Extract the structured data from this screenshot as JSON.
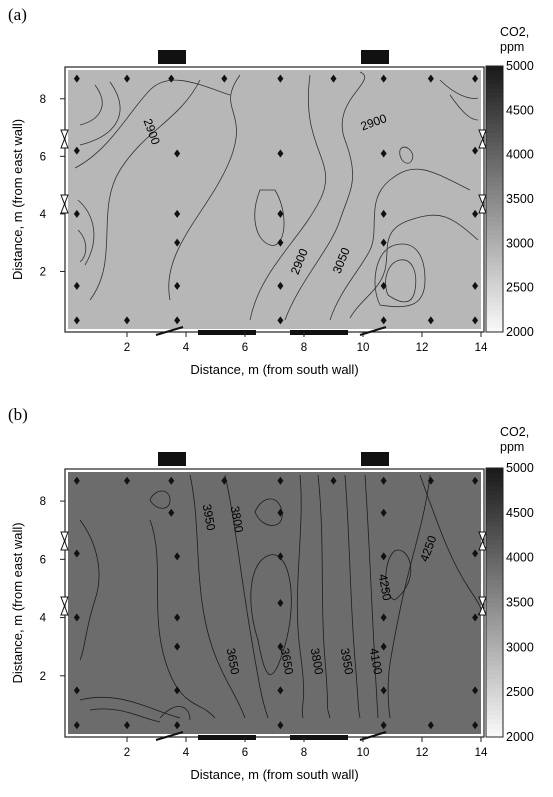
{
  "chart_data": [
    {
      "type": "heatmap",
      "panel_label": "(a)",
      "title": "",
      "xlabel": "Distance, m (from south wall)",
      "ylabel": "Distance, m (from east wall)",
      "xlim": [
        0,
        14
      ],
      "ylim": [
        0,
        9
      ],
      "x_ticks": [
        "2",
        "4",
        "6",
        "8",
        "10",
        "12",
        "14"
      ],
      "y_ticks": [
        "2",
        "4",
        "6",
        "8"
      ],
      "colorbar": {
        "title": [
          "CO2,",
          "ppm"
        ],
        "range": [
          2000,
          5000
        ],
        "ticks": [
          "5000",
          "4500",
          "4000",
          "3500",
          "3000",
          "2500",
          "2000"
        ]
      },
      "contour_labels": [
        "2900",
        "2900",
        "2900",
        "3050"
      ],
      "background_level_ppm": 2900,
      "measurement_points": [
        [
          0.3,
          8.7
        ],
        [
          2.0,
          8.7
        ],
        [
          3.5,
          8.7
        ],
        [
          5.3,
          8.7
        ],
        [
          7.2,
          8.7
        ],
        [
          9.0,
          8.7
        ],
        [
          10.7,
          8.7
        ],
        [
          12.3,
          8.7
        ],
        [
          13.8,
          8.7
        ],
        [
          0.3,
          6.2
        ],
        [
          3.7,
          6.1
        ],
        [
          7.2,
          6.1
        ],
        [
          10.7,
          6.1
        ],
        [
          13.8,
          6.2
        ],
        [
          0.3,
          4.0
        ],
        [
          3.7,
          4.0
        ],
        [
          7.2,
          4.0
        ],
        [
          10.7,
          4.0
        ],
        [
          13.8,
          4.0
        ],
        [
          3.7,
          3.0
        ],
        [
          7.2,
          3.0
        ],
        [
          10.7,
          3.0
        ],
        [
          0.3,
          1.5
        ],
        [
          3.7,
          1.5
        ],
        [
          7.2,
          1.5
        ],
        [
          10.7,
          1.5
        ],
        [
          13.8,
          1.5
        ],
        [
          0.3,
          0.3
        ],
        [
          2.0,
          0.3
        ],
        [
          3.7,
          0.3
        ],
        [
          7.2,
          0.3
        ],
        [
          10.7,
          0.3
        ],
        [
          12.3,
          0.3
        ],
        [
          13.8,
          0.3
        ]
      ]
    },
    {
      "type": "heatmap",
      "panel_label": "(b)",
      "title": "",
      "xlabel": "Distance, m (from south wall)",
      "ylabel": "Distance, m (from east wall)",
      "xlim": [
        0,
        14
      ],
      "ylim": [
        0,
        9
      ],
      "x_ticks": [
        "2",
        "4",
        "6",
        "8",
        "10",
        "12",
        "14"
      ],
      "y_ticks": [
        "2",
        "4",
        "6",
        "8"
      ],
      "colorbar": {
        "title": [
          "CO2,",
          "ppm"
        ],
        "range": [
          2000,
          5000
        ],
        "ticks": [
          "5000",
          "4500",
          "4000",
          "3500",
          "3000",
          "2500",
          "2000"
        ]
      },
      "contour_labels": [
        "3950",
        "3800",
        "3650",
        "3650",
        "3800",
        "3950",
        "4100",
        "4250",
        "4250"
      ],
      "background_level_ppm": 3900,
      "measurement_points": [
        [
          0.3,
          8.7
        ],
        [
          2.0,
          8.7
        ],
        [
          3.5,
          8.7
        ],
        [
          5.3,
          8.7
        ],
        [
          7.2,
          8.7
        ],
        [
          9.0,
          8.7
        ],
        [
          10.7,
          8.7
        ],
        [
          12.3,
          8.7
        ],
        [
          13.8,
          8.7
        ],
        [
          3.5,
          7.6
        ],
        [
          7.2,
          7.6
        ],
        [
          10.7,
          7.6
        ],
        [
          0.3,
          6.2
        ],
        [
          3.7,
          6.1
        ],
        [
          7.2,
          6.1
        ],
        [
          10.7,
          6.1
        ],
        [
          13.8,
          6.2
        ],
        [
          0.3,
          4.0
        ],
        [
          3.7,
          4.0
        ],
        [
          7.2,
          4.5
        ],
        [
          10.7,
          4.0
        ],
        [
          13.8,
          4.0
        ],
        [
          3.7,
          3.0
        ],
        [
          7.2,
          3.0
        ],
        [
          10.7,
          3.0
        ],
        [
          0.3,
          1.5
        ],
        [
          3.7,
          1.5
        ],
        [
          7.2,
          1.5
        ],
        [
          10.7,
          1.5
        ],
        [
          13.8,
          1.5
        ],
        [
          0.3,
          0.3
        ],
        [
          2.0,
          0.3
        ],
        [
          3.7,
          0.3
        ],
        [
          7.2,
          0.3
        ],
        [
          10.7,
          0.3
        ],
        [
          12.3,
          0.3
        ],
        [
          13.8,
          0.3
        ]
      ]
    }
  ]
}
